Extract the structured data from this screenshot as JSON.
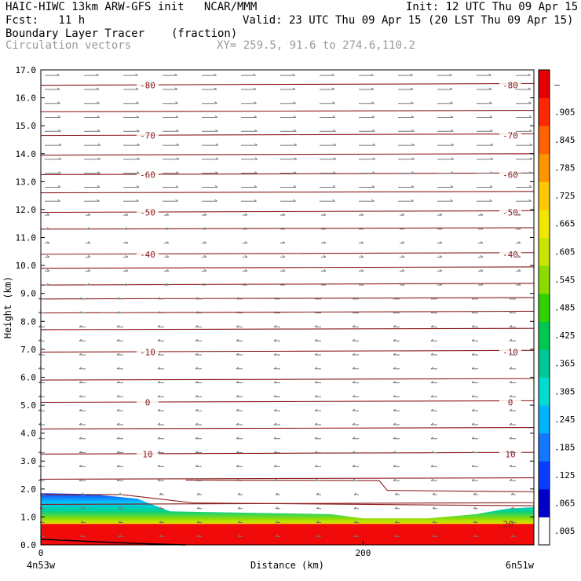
{
  "header": {
    "line1_left": "HAIC-HIWC 13km ARW-GFS init   NCAR/MMM",
    "line1_right": "Init: 12 UTC Thu 09 Apr 15",
    "line2_left": "Fcst:   11 h",
    "line2_right": "Valid: 23 UTC Thu 09 Apr 15 (20 LST Thu 09 Apr 15)",
    "field_name": "Boundary Layer Tracer",
    "field_units": "(fraction)",
    "vector_name": "Circulation vectors",
    "xy_range": "XY= 259.5, 91.6 to 274.6,110.2"
  },
  "chart_data": {
    "type": "heatmap",
    "title": "Boundary Layer Tracer",
    "units": "(fraction)",
    "xlabel": "Distance (km)",
    "ylabel": "Height (km)",
    "xlim": [
      0,
      306
    ],
    "ylim": [
      0,
      17
    ],
    "x_ticks": [
      0,
      200
    ],
    "y_ticks": [
      "0.0",
      "1.0",
      "2.0",
      "3.0",
      "4.0",
      "5.0",
      "6.0",
      "7.0",
      "8.0",
      "9.0",
      "10.0",
      "11.0",
      "12.0",
      "13.0",
      "14.0",
      "15.0",
      "16.0",
      "17.0"
    ],
    "x_end_labels": {
      "left": "4n53w",
      "right": "6n51w"
    },
    "colorbar": {
      "labels": [
        ".005",
        ".065",
        ".125",
        ".185",
        ".245",
        ".305",
        ".365",
        ".425",
        ".485",
        ".545",
        ".605",
        ".665",
        ".725",
        ".785",
        ".845",
        ".905",
        "–"
      ],
      "colors": [
        "#ffffff",
        "#0000c8",
        "#0a3cff",
        "#1478ff",
        "#00b4ff",
        "#00dcd2",
        "#00c896",
        "#00c850",
        "#32d200",
        "#8cdc00",
        "#c8e600",
        "#f0e600",
        "#ffc800",
        "#ff9600",
        "#ff6400",
        "#ff2800",
        "#e60000"
      ]
    },
    "temperature_contours": [
      {
        "label": "-80",
        "height_km": 16.45
      },
      {
        "label": "-70",
        "height_km": 14.65
      },
      {
        "label": "-60",
        "height_km": 13.25
      },
      {
        "label": "-50",
        "height_km": 11.9
      },
      {
        "label": "-40",
        "height_km": 10.4
      },
      {
        "label": "-10",
        "height_km": 6.9
      },
      {
        "label": "0",
        "height_km": 5.1
      },
      {
        "label": "10",
        "height_km": 3.25
      }
    ],
    "right_edge_contour_label": "20",
    "boundary_layer_top_km": [
      [
        0,
        1.85
      ],
      [
        30,
        1.82
      ],
      [
        60,
        1.65
      ],
      [
        80,
        1.2
      ],
      [
        130,
        1.15
      ],
      [
        180,
        1.1
      ],
      [
        200,
        0.95
      ],
      [
        240,
        0.95
      ],
      [
        270,
        1.1
      ],
      [
        290,
        1.3
      ],
      [
        306,
        1.35
      ]
    ]
  }
}
